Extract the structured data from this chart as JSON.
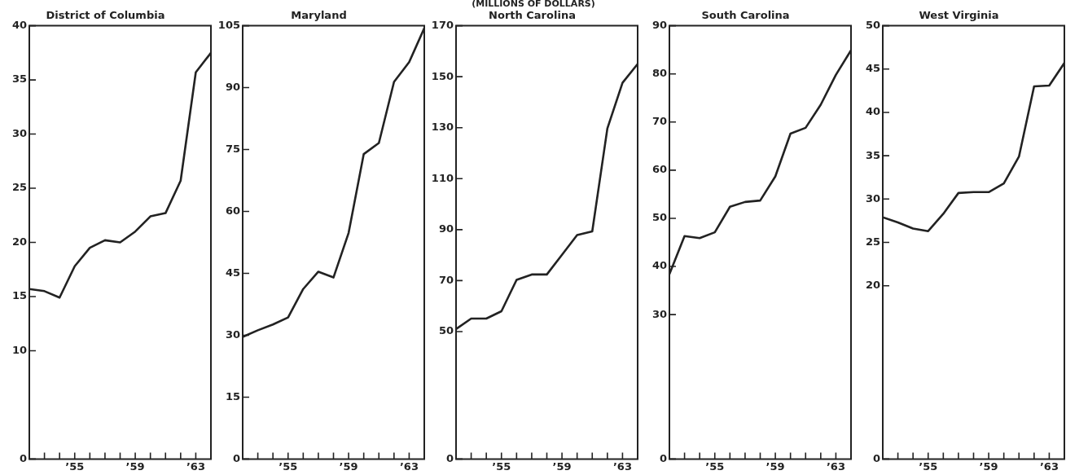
{
  "chart_data": [
    {
      "type": "line",
      "title": "District of Columbia",
      "x": [
        1952,
        1953,
        1954,
        1955,
        1956,
        1957,
        1958,
        1959,
        1960,
        1961,
        1962,
        1963,
        1964
      ],
      "series": [
        {
          "color": "#222222",
          "values": [
            15.7,
            15.5,
            14.9,
            17.8,
            19.5,
            20.2,
            20.0,
            21.0,
            22.4,
            22.7,
            25.7,
            35.7,
            37.5
          ]
        }
      ],
      "xlim": [
        1952,
        1964
      ],
      "xticks": [
        {
          "value": 1953,
          "label": null
        },
        {
          "value": 1954,
          "label": null
        },
        {
          "value": 1955,
          "label": "’55"
        },
        {
          "value": 1956,
          "label": null
        },
        {
          "value": 1957,
          "label": null
        },
        {
          "value": 1958,
          "label": null
        },
        {
          "value": 1959,
          "label": "’59"
        },
        {
          "value": 1960,
          "label": null
        },
        {
          "value": 1961,
          "label": null
        },
        {
          "value": 1962,
          "label": null
        },
        {
          "value": 1963,
          "label": "’63"
        }
      ],
      "ylim": [
        0,
        40
      ],
      "yticks": [
        0,
        10,
        15,
        20,
        25,
        30,
        35,
        40
      ]
    },
    {
      "type": "line",
      "title": "Maryland",
      "x": [
        1952,
        1953,
        1954,
        1955,
        1956,
        1957,
        1958,
        1959,
        1960,
        1961,
        1962,
        1963,
        1964
      ],
      "series": [
        {
          "color": "#222222",
          "values": [
            29.6,
            31.2,
            32.6,
            34.3,
            41.2,
            45.4,
            44.0,
            54.8,
            73.9,
            76.6,
            91.4,
            96.2,
            104.4
          ]
        }
      ],
      "xlim": [
        1952,
        1964
      ],
      "xticks": [
        {
          "value": 1953,
          "label": null
        },
        {
          "value": 1954,
          "label": null
        },
        {
          "value": 1955,
          "label": "’55"
        },
        {
          "value": 1956,
          "label": null
        },
        {
          "value": 1957,
          "label": null
        },
        {
          "value": 1958,
          "label": null
        },
        {
          "value": 1959,
          "label": "’59"
        },
        {
          "value": 1960,
          "label": null
        },
        {
          "value": 1961,
          "label": null
        },
        {
          "value": 1962,
          "label": null
        },
        {
          "value": 1963,
          "label": "’63"
        }
      ],
      "ylim": [
        0,
        105
      ],
      "yticks": [
        0,
        15,
        30,
        45,
        60,
        75,
        90,
        105
      ]
    },
    {
      "type": "line",
      "title": "North Carolina",
      "annotations": [
        "(MILLIONS OF DOLLARS)"
      ],
      "x": [
        1952,
        1953,
        1954,
        1955,
        1956,
        1957,
        1958,
        1959,
        1960,
        1961,
        1962,
        1963,
        1964
      ],
      "series": [
        {
          "color": "#222222",
          "values": [
            51.0,
            55.1,
            55.1,
            58.0,
            70.3,
            72.4,
            72.4,
            80.1,
            87.9,
            89.3,
            129.7,
            147.6,
            155.0
          ]
        }
      ],
      "xlim": [
        1952,
        1964
      ],
      "xticks": [
        {
          "value": 1953,
          "label": null
        },
        {
          "value": 1954,
          "label": null
        },
        {
          "value": 1955,
          "label": "’55"
        },
        {
          "value": 1956,
          "label": null
        },
        {
          "value": 1957,
          "label": null
        },
        {
          "value": 1958,
          "label": null
        },
        {
          "value": 1959,
          "label": "’59"
        },
        {
          "value": 1960,
          "label": null
        },
        {
          "value": 1961,
          "label": null
        },
        {
          "value": 1962,
          "label": null
        },
        {
          "value": 1963,
          "label": "’63"
        }
      ],
      "ylim": [
        0,
        170
      ],
      "yticks": [
        0,
        50,
        70,
        90,
        110,
        130,
        150,
        170
      ]
    },
    {
      "type": "line",
      "title": "South Carolina",
      "x": [
        1952,
        1953,
        1954,
        1955,
        1956,
        1957,
        1958,
        1959,
        1960,
        1961,
        1962,
        1963,
        1964
      ],
      "series": [
        {
          "color": "#222222",
          "values": [
            38.4,
            46.3,
            45.9,
            47.1,
            52.4,
            53.4,
            53.7,
            58.7,
            67.6,
            68.8,
            73.6,
            79.8,
            84.9
          ]
        }
      ],
      "xlim": [
        1952,
        1964
      ],
      "xticks": [
        {
          "value": 1953,
          "label": null
        },
        {
          "value": 1954,
          "label": null
        },
        {
          "value": 1955,
          "label": "’55"
        },
        {
          "value": 1956,
          "label": null
        },
        {
          "value": 1957,
          "label": null
        },
        {
          "value": 1958,
          "label": null
        },
        {
          "value": 1959,
          "label": "’59"
        },
        {
          "value": 1960,
          "label": null
        },
        {
          "value": 1961,
          "label": null
        },
        {
          "value": 1962,
          "label": null
        },
        {
          "value": 1963,
          "label": "’63"
        }
      ],
      "ylim": [
        0,
        90
      ],
      "yticks": [
        0,
        30,
        40,
        50,
        60,
        70,
        80,
        90
      ]
    },
    {
      "type": "line",
      "title": "West Virginia",
      "x": [
        1952,
        1953,
        1954,
        1955,
        1956,
        1957,
        1958,
        1959,
        1960,
        1961,
        1962,
        1963,
        1964
      ],
      "series": [
        {
          "color": "#222222",
          "values": [
            27.9,
            27.3,
            26.6,
            26.3,
            28.3,
            30.7,
            30.8,
            30.8,
            31.8,
            34.9,
            43.0,
            43.1,
            45.7
          ]
        }
      ],
      "xlim": [
        1952,
        1964
      ],
      "xticks": [
        {
          "value": 1953,
          "label": null
        },
        {
          "value": 1954,
          "label": null
        },
        {
          "value": 1955,
          "label": "’55"
        },
        {
          "value": 1956,
          "label": null
        },
        {
          "value": 1957,
          "label": null
        },
        {
          "value": 1958,
          "label": null
        },
        {
          "value": 1959,
          "label": "’59"
        },
        {
          "value": 1960,
          "label": null
        },
        {
          "value": 1961,
          "label": null
        },
        {
          "value": 1962,
          "label": null
        },
        {
          "value": 1963,
          "label": "’63"
        }
      ],
      "ylim": [
        0,
        50
      ],
      "yticks": [
        0,
        20,
        25,
        30,
        35,
        40,
        45,
        50
      ]
    }
  ]
}
